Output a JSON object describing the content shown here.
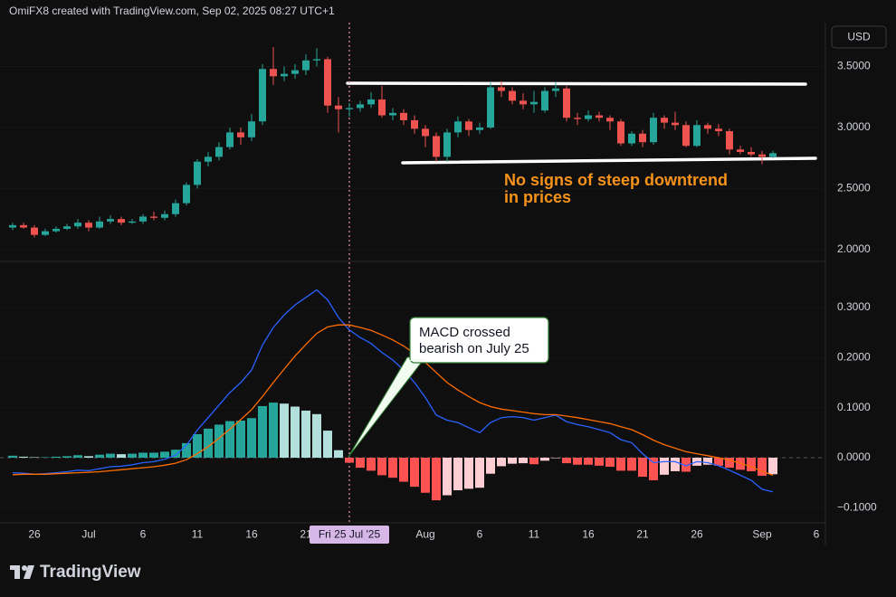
{
  "header": "OmiFX8 created with TradingView.com, Sep 02, 2025 08:27 UTC+1",
  "currency": "USD",
  "watermark": "TradingView",
  "chart_data": [
    {
      "type": "candlestick",
      "categories": [
        null,
        null,
        "26",
        null,
        null,
        null,
        null,
        "Jul",
        null,
        null,
        null,
        null,
        "6",
        null,
        null,
        null,
        null,
        "11",
        null,
        null,
        null,
        null,
        "16",
        null,
        null,
        null,
        null,
        "21",
        null,
        null,
        null,
        "Fri 25 Jul '25",
        null,
        null,
        null,
        null,
        null,
        null,
        "Aug",
        null,
        null,
        null,
        null,
        "6",
        null,
        null,
        null,
        null,
        "11",
        null,
        null,
        null,
        null,
        "16",
        null,
        null,
        null,
        null,
        "21",
        null,
        null,
        null,
        null,
        "26",
        null,
        null,
        null,
        null,
        null,
        "Sep",
        null,
        null,
        null,
        null,
        "6",
        null
      ],
      "open": [
        2.18,
        2.2,
        2.18,
        2.12,
        2.15,
        2.17,
        2.19,
        2.22,
        2.18,
        2.23,
        2.25,
        2.22,
        2.23,
        2.27,
        2.26,
        2.29,
        2.38,
        2.53,
        2.72,
        2.76,
        2.84,
        2.96,
        2.92,
        3.05,
        3.48,
        3.42,
        3.44,
        3.47,
        3.55,
        3.56,
        3.18,
        3.15,
        3.16,
        3.19,
        3.23,
        3.1,
        3.12,
        3.06,
        2.99,
        2.93,
        2.76,
        2.96,
        3.05,
        2.98,
        3.0,
        3.33,
        3.3,
        3.22,
        3.19,
        3.14,
        3.3,
        3.32,
        3.08,
        3.07,
        3.1,
        3.08,
        3.05,
        2.87,
        2.95,
        2.88,
        3.08,
        3.04,
        3.02,
        2.85,
        3.02,
        2.99,
        2.97,
        2.82,
        2.8,
        2.78,
        2.76,
        null,
        null,
        null,
        null,
        null
      ],
      "high": [
        2.22,
        2.22,
        2.2,
        2.17,
        2.19,
        2.21,
        2.25,
        2.24,
        2.27,
        2.28,
        2.27,
        2.25,
        2.29,
        2.31,
        2.32,
        2.41,
        2.55,
        2.74,
        2.8,
        2.88,
        3.0,
        3.0,
        3.11,
        3.52,
        3.66,
        3.5,
        3.52,
        3.6,
        3.65,
        3.58,
        3.25,
        3.2,
        3.22,
        3.29,
        3.34,
        3.16,
        3.15,
        3.1,
        3.02,
        2.96,
        2.99,
        3.09,
        3.07,
        3.04,
        3.37,
        3.38,
        3.33,
        3.28,
        3.3,
        3.33,
        3.37,
        3.34,
        3.12,
        3.14,
        3.13,
        3.1,
        3.07,
        2.97,
        2.98,
        3.12,
        3.1,
        3.13,
        3.05,
        3.06,
        3.04,
        3.03,
        2.99,
        2.85,
        2.84,
        2.81,
        2.81,
        null,
        null,
        null,
        null,
        null
      ],
      "low": [
        2.16,
        2.17,
        2.1,
        2.11,
        2.14,
        2.16,
        2.17,
        2.15,
        2.17,
        2.21,
        2.2,
        2.21,
        2.21,
        2.24,
        2.24,
        2.27,
        2.36,
        2.5,
        2.68,
        2.73,
        2.82,
        2.86,
        2.89,
        3.02,
        3.35,
        3.38,
        3.4,
        3.43,
        3.5,
        3.12,
        2.96,
        3.09,
        3.13,
        3.16,
        3.08,
        3.06,
        3.02,
        2.95,
        2.84,
        2.72,
        2.72,
        2.92,
        2.93,
        2.95,
        2.99,
        3.25,
        3.19,
        3.15,
        3.12,
        3.12,
        3.25,
        3.05,
        3.02,
        3.05,
        3.05,
        2.98,
        2.85,
        2.85,
        2.84,
        2.86,
        2.99,
        2.98,
        2.84,
        2.84,
        2.95,
        2.93,
        2.78,
        2.78,
        2.76,
        2.7,
        2.75,
        null,
        null,
        null,
        null,
        null
      ],
      "close": [
        2.2,
        2.18,
        2.12,
        2.15,
        2.17,
        2.19,
        2.22,
        2.18,
        2.23,
        2.25,
        2.22,
        2.23,
        2.27,
        2.26,
        2.29,
        2.38,
        2.53,
        2.72,
        2.76,
        2.84,
        2.96,
        2.92,
        3.05,
        3.48,
        3.42,
        3.44,
        3.47,
        3.55,
        3.56,
        3.18,
        3.15,
        3.16,
        3.19,
        3.23,
        3.1,
        3.12,
        3.06,
        2.99,
        2.93,
        2.76,
        2.96,
        3.05,
        2.98,
        3.0,
        3.33,
        3.3,
        3.22,
        3.19,
        3.21,
        3.3,
        3.32,
        3.08,
        3.07,
        3.1,
        3.08,
        3.05,
        2.87,
        2.95,
        2.88,
        3.08,
        3.04,
        3.02,
        2.85,
        3.02,
        2.99,
        2.97,
        2.82,
        2.8,
        2.78,
        2.76,
        2.79,
        null,
        null,
        null,
        null,
        null
      ],
      "colors": {
        "up": "#26a69a",
        "down": "#ef5350"
      },
      "ylim": [
        1.91,
        3.86
      ],
      "yticks": [
        {
          "value": 2.0,
          "label": "2.0000"
        },
        {
          "value": 2.5,
          "label": "2.5000"
        },
        {
          "value": 3.0,
          "label": "3.0000"
        },
        {
          "value": 3.5,
          "label": "3.5000"
        }
      ],
      "annotation": [
        "No signs of steep downtrend",
        "in prices"
      ],
      "annotation_color": "#f7931a"
    },
    {
      "type": "macd",
      "macd": {
        "color": "#2962ff",
        "values": [
          -0.03,
          -0.031,
          -0.033,
          -0.032,
          -0.03,
          -0.028,
          -0.025,
          -0.026,
          -0.022,
          -0.018,
          -0.017,
          -0.014,
          -0.01,
          -0.008,
          -0.003,
          0.005,
          0.025,
          0.055,
          0.08,
          0.105,
          0.13,
          0.15,
          0.175,
          0.225,
          0.26,
          0.285,
          0.305,
          0.32,
          0.335,
          0.315,
          0.28,
          0.255,
          0.24,
          0.228,
          0.21,
          0.195,
          0.175,
          0.15,
          0.12,
          0.085,
          0.075,
          0.07,
          0.06,
          0.05,
          0.07,
          0.08,
          0.082,
          0.08,
          0.075,
          0.08,
          0.085,
          0.072,
          0.066,
          0.062,
          0.056,
          0.05,
          0.036,
          0.03,
          0.008,
          -0.01,
          -0.008,
          -0.008,
          -0.016,
          -0.008,
          -0.01,
          -0.016,
          -0.025,
          -0.035,
          -0.045,
          -0.063,
          -0.068,
          null,
          null,
          null,
          null,
          null
        ]
      },
      "signal": {
        "color": "#ff6d00",
        "values": [
          -0.034,
          -0.033,
          -0.033,
          -0.033,
          -0.032,
          -0.031,
          -0.03,
          -0.029,
          -0.028,
          -0.026,
          -0.024,
          -0.022,
          -0.02,
          -0.018,
          -0.015,
          -0.011,
          -0.004,
          0.008,
          0.022,
          0.039,
          0.057,
          0.076,
          0.096,
          0.122,
          0.15,
          0.177,
          0.203,
          0.226,
          0.248,
          0.261,
          0.265,
          0.265,
          0.26,
          0.254,
          0.245,
          0.235,
          0.223,
          0.208,
          0.19,
          0.17,
          0.15,
          0.135,
          0.122,
          0.11,
          0.102,
          0.097,
          0.094,
          0.091,
          0.088,
          0.086,
          0.086,
          0.083,
          0.08,
          0.076,
          0.072,
          0.068,
          0.062,
          0.056,
          0.046,
          0.035,
          0.026,
          0.019,
          0.012,
          0.008,
          0.004,
          0.0,
          -0.005,
          -0.011,
          -0.018,
          -0.027,
          -0.035,
          null,
          null,
          null,
          null,
          null
        ]
      },
      "histogram": {
        "colors": {
          "rising_above": "#26a69a",
          "falling_above": "#b2dfdb",
          "falling_below": "#ff5252",
          "rising_below": "#ffcdd2"
        },
        "values": [
          0.004,
          0.002,
          0.001,
          0.001,
          0.002,
          0.003,
          0.005,
          0.003,
          0.006,
          0.008,
          0.007,
          0.008,
          0.01,
          0.01,
          0.012,
          0.016,
          0.029,
          0.047,
          0.058,
          0.066,
          0.073,
          0.074,
          0.079,
          0.103,
          0.11,
          0.108,
          0.102,
          0.094,
          0.087,
          0.054,
          0.015,
          -0.01,
          -0.02,
          -0.026,
          -0.035,
          -0.04,
          -0.048,
          -0.058,
          -0.07,
          -0.085,
          -0.075,
          -0.065,
          -0.062,
          -0.06,
          -0.032,
          -0.017,
          -0.012,
          -0.011,
          -0.013,
          -0.006,
          -0.001,
          -0.011,
          -0.014,
          -0.014,
          -0.016,
          -0.018,
          -0.026,
          -0.026,
          -0.038,
          -0.045,
          -0.034,
          -0.027,
          -0.028,
          -0.016,
          -0.014,
          -0.016,
          -0.02,
          -0.024,
          -0.027,
          -0.036,
          -0.033,
          null,
          null,
          null,
          null,
          null
        ]
      },
      "ylim": [
        -0.13,
        0.39
      ],
      "yticks": [
        {
          "value": -0.1,
          "label": "−0.1000"
        },
        {
          "value": 0.0,
          "label": "0.0000"
        },
        {
          "value": 0.1,
          "label": "0.1000"
        },
        {
          "value": 0.2,
          "label": "0.2000"
        },
        {
          "value": 0.3,
          "label": "0.3000"
        }
      ],
      "annotation": [
        "MACD crossed",
        "bearish on July 25"
      ]
    }
  ]
}
